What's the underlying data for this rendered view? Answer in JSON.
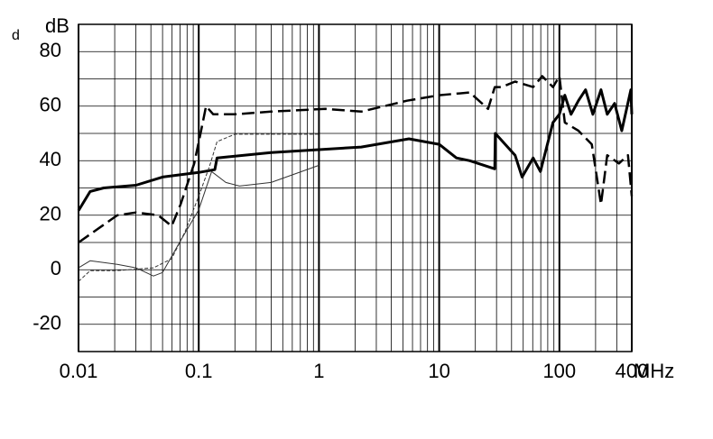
{
  "chart_data": {
    "type": "line",
    "annotation": "d",
    "y_label": "dB",
    "x_label": "MHz",
    "x_log": true,
    "xlim": [
      0.01,
      400
    ],
    "ylim": [
      -30,
      90
    ],
    "xticks": [
      0.01,
      0.1,
      1,
      10,
      100,
      400
    ],
    "x_minor_grid": [
      0.02,
      0.03,
      0.04,
      0.05,
      0.06,
      0.07,
      0.08,
      0.09,
      0.2,
      0.3,
      0.4,
      0.5,
      0.6,
      0.7,
      0.8,
      0.9,
      2,
      3,
      4,
      5,
      6,
      7,
      8,
      9,
      20,
      30,
      40,
      50,
      60,
      70,
      80,
      90,
      200,
      300
    ],
    "yticks": [
      -20,
      0,
      20,
      40,
      60,
      80
    ],
    "y_minor_grid": [
      -30,
      -10,
      10,
      30,
      50,
      70,
      90
    ],
    "grid": true,
    "series": [
      {
        "color": "#000000",
        "width": 3,
        "dashed": false,
        "x": [
          0.01,
          0.0125,
          0.0162,
          0.03,
          0.05,
          0.1,
          0.136,
          0.142,
          0.4,
          2.25,
          5.6,
          10,
          13.9,
          18,
          29,
          29.3,
          42.8,
          49,
          60.5,
          69.5,
          88.5,
          100,
          111,
          125,
          144,
          165,
          190,
          222,
          250,
          288,
          330,
          393,
          400
        ],
        "values": [
          21.7,
          28.7,
          30,
          31,
          34,
          35.7,
          36.7,
          41,
          43,
          45,
          48,
          46,
          41,
          40,
          37,
          50,
          42,
          34,
          41,
          36,
          54,
          57,
          64,
          57,
          62,
          66,
          57,
          66,
          57,
          61,
          51,
          66,
          57
        ]
      },
      {
        "color": "#000000",
        "width": 2.5,
        "dashed": true,
        "x": [
          0.01,
          0.0125,
          0.021,
          0.03,
          0.046,
          0.0595,
          0.0707,
          0.0917,
          0.1035,
          0.115,
          0.132,
          0.2,
          0.4,
          1.13,
          2.25,
          5.4,
          10,
          18,
          25.5,
          29,
          33,
          42.8,
          60.5,
          72,
          88.5,
          100,
          111,
          144,
          186,
          222,
          250,
          313,
          372,
          400
        ],
        "values": [
          10,
          13,
          20,
          21,
          20,
          16,
          24,
          39,
          50,
          60,
          57,
          57,
          58,
          59,
          58,
          62,
          64,
          65,
          59,
          67,
          67,
          69,
          67,
          71,
          67,
          71,
          54,
          51,
          46,
          24,
          42,
          39,
          42,
          27
        ]
      },
      {
        "color": "#333333",
        "width": 1,
        "dashed": false,
        "x": [
          0.01,
          0.0125,
          0.021,
          0.03,
          0.042,
          0.05,
          0.0707,
          0.1,
          0.128,
          0.168,
          0.218,
          0.4,
          1
        ],
        "values": [
          0.7,
          3.3,
          2,
          0.7,
          -2.3,
          -1,
          10.7,
          22,
          36,
          32,
          30.7,
          32,
          38.3
        ]
      },
      {
        "color": "#333333",
        "width": 1,
        "dashed": true,
        "x": [
          0.01,
          0.0125,
          0.021,
          0.042,
          0.0595,
          0.077,
          0.1,
          0.123,
          0.142,
          0.2,
          1
        ],
        "values": [
          -4.3,
          -0.3,
          -0.3,
          0.7,
          4,
          14,
          27,
          38,
          47,
          49.7,
          49.7
        ]
      }
    ]
  }
}
